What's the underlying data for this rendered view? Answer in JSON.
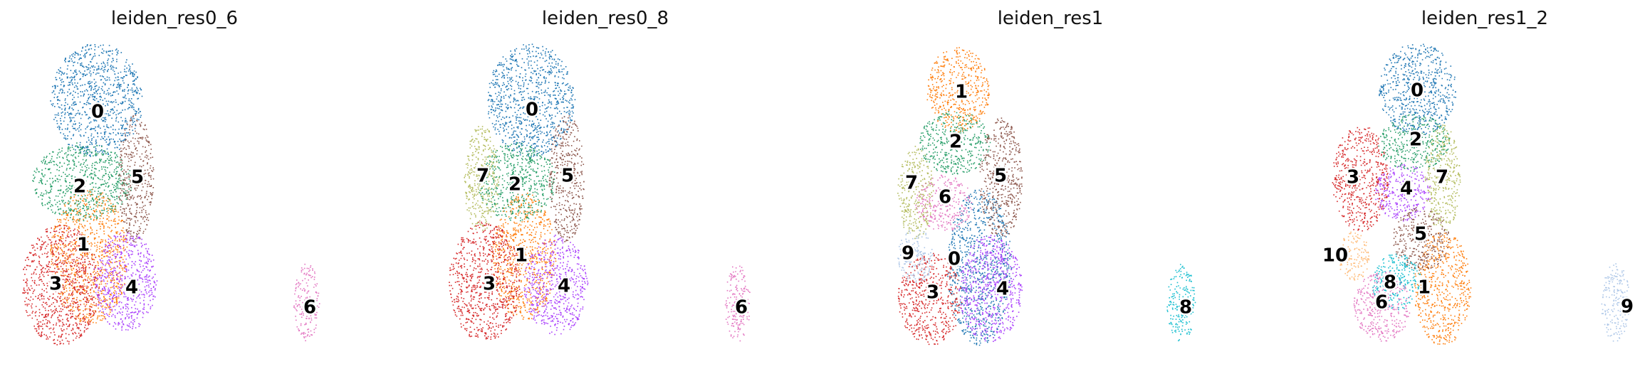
{
  "chart_data": [
    {
      "type": "scatter",
      "title": "leiden_res0_6",
      "xlabel": "",
      "ylabel": "",
      "grid": false,
      "legend": "on-data",
      "clusters": [
        {
          "name": "0",
          "color": "#1f77b4"
        },
        {
          "name": "1",
          "color": "#ff7f0e"
        },
        {
          "name": "2",
          "color": "#279e68"
        },
        {
          "name": "3",
          "color": "#d62728"
        },
        {
          "name": "4",
          "color": "#aa40fc"
        },
        {
          "name": "5",
          "color": "#8c564b"
        },
        {
          "name": "6",
          "color": "#e377c2"
        }
      ]
    },
    {
      "type": "scatter",
      "title": "leiden_res0_8",
      "xlabel": "",
      "ylabel": "",
      "grid": false,
      "legend": "on-data",
      "clusters": [
        {
          "name": "0",
          "color": "#1f77b4"
        },
        {
          "name": "1",
          "color": "#ff7f0e"
        },
        {
          "name": "2",
          "color": "#279e68"
        },
        {
          "name": "3",
          "color": "#d62728"
        },
        {
          "name": "4",
          "color": "#aa40fc"
        },
        {
          "name": "5",
          "color": "#8c564b"
        },
        {
          "name": "6",
          "color": "#e377c2"
        },
        {
          "name": "7",
          "color": "#b5bd61"
        }
      ]
    },
    {
      "type": "scatter",
      "title": "leiden_res1",
      "xlabel": "",
      "ylabel": "",
      "grid": false,
      "legend": "on-data",
      "clusters": [
        {
          "name": "0",
          "color": "#1f77b4"
        },
        {
          "name": "1",
          "color": "#ff7f0e"
        },
        {
          "name": "2",
          "color": "#279e68"
        },
        {
          "name": "3",
          "color": "#d62728"
        },
        {
          "name": "4",
          "color": "#aa40fc"
        },
        {
          "name": "5",
          "color": "#8c564b"
        },
        {
          "name": "6",
          "color": "#e377c2"
        },
        {
          "name": "7",
          "color": "#b5bd61"
        },
        {
          "name": "8",
          "color": "#17becf"
        },
        {
          "name": "9",
          "color": "#aec7e8"
        }
      ]
    },
    {
      "type": "scatter",
      "title": "leiden_res1_2",
      "xlabel": "",
      "ylabel": "",
      "grid": false,
      "legend": "on-data",
      "clusters": [
        {
          "name": "0",
          "color": "#1f77b4"
        },
        {
          "name": "1",
          "color": "#ff7f0e"
        },
        {
          "name": "2",
          "color": "#279e68"
        },
        {
          "name": "3",
          "color": "#d62728"
        },
        {
          "name": "4",
          "color": "#aa40fc"
        },
        {
          "name": "5",
          "color": "#8c564b"
        },
        {
          "name": "6",
          "color": "#e377c2"
        },
        {
          "name": "7",
          "color": "#b5bd61"
        },
        {
          "name": "8",
          "color": "#17becf"
        },
        {
          "name": "9",
          "color": "#aec7e8"
        },
        {
          "name": "10",
          "color": "#ffbb78"
        }
      ]
    }
  ]
}
